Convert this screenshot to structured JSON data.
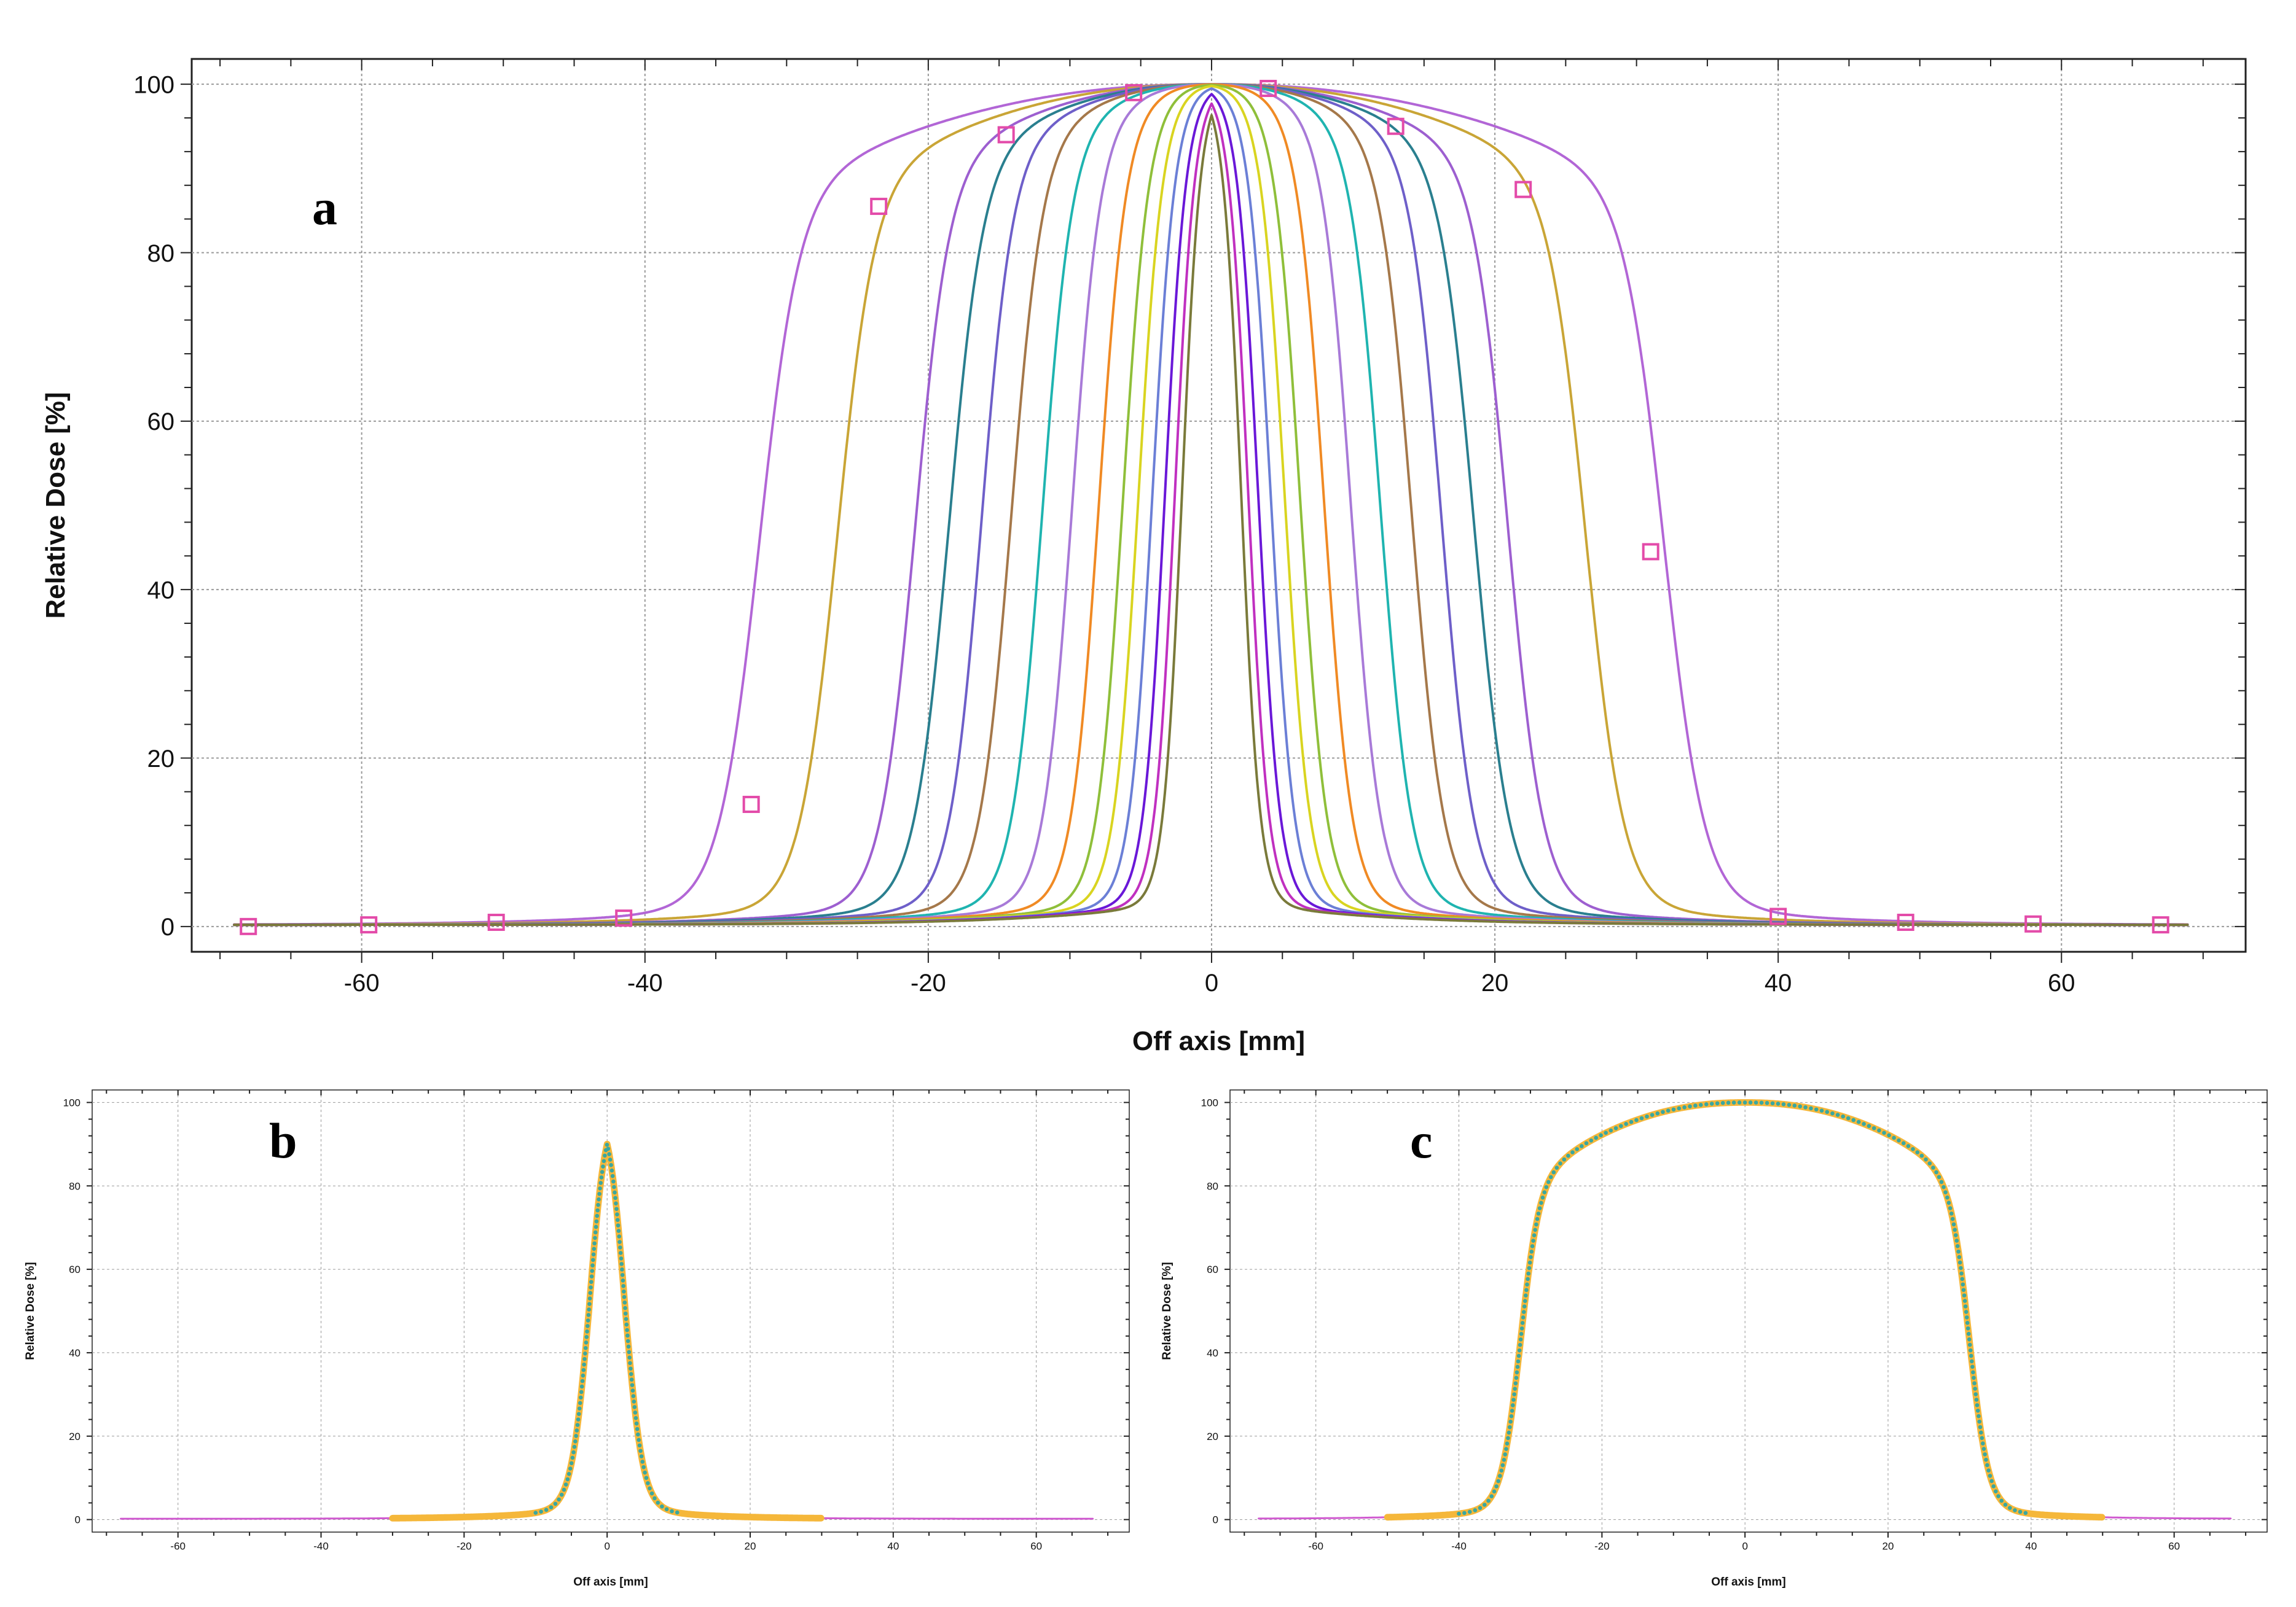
{
  "chart_data": [
    {
      "panel": "a",
      "type": "line",
      "xlabel": "Off axis [mm]",
      "ylabel": "Relative Dose [%]",
      "xlim": [
        -72,
        73
      ],
      "ylim": [
        -3,
        103
      ],
      "xticks": [
        -60,
        -40,
        -20,
        0,
        20,
        40,
        60
      ],
      "yticks": [
        0,
        20,
        40,
        60,
        80,
        100
      ],
      "grid": true,
      "series": [
        {
          "color": "#b266d6",
          "half_width_50": 32.0,
          "penumbra": 1.4,
          "edge_dose": 86,
          "marker": "square"
        },
        {
          "color": "#c9a536",
          "half_width_50": 26.5,
          "penumbra": 1.3,
          "edge_dose": 87
        },
        {
          "color": "#9d5fd0",
          "half_width_50": 21.0,
          "penumbra": 1.2,
          "edge_dose": 89
        },
        {
          "color": "#2a7f8f",
          "half_width_50": 18.6,
          "penumbra": 1.2,
          "edge_dose": 90
        },
        {
          "color": "#6e5fc9",
          "half_width_50": 16.3,
          "penumbra": 1.1,
          "edge_dose": 91
        },
        {
          "color": "#a5784a",
          "half_width_50": 14.2,
          "penumbra": 1.1,
          "edge_dose": 92
        },
        {
          "color": "#1fb4b0",
          "half_width_50": 12.0,
          "penumbra": 1.05,
          "edge_dose": 93
        },
        {
          "color": "#a87ad8",
          "half_width_50": 9.9,
          "penumbra": 1.0,
          "edge_dose": 94
        },
        {
          "color": "#f08a24",
          "half_width_50": 8.0,
          "penumbra": 0.95,
          "edge_dose": 95
        },
        {
          "color": "#8fbf3a",
          "half_width_50": 6.3,
          "penumbra": 0.9,
          "edge_dose": 96
        },
        {
          "color": "#d9d420",
          "half_width_50": 5.2,
          "penumbra": 0.85,
          "edge_dose": 97
        },
        {
          "color": "#6b7fd6",
          "half_width_50": 4.2,
          "penumbra": 0.8,
          "edge_dose": 98
        },
        {
          "color": "#6a18d8",
          "half_width_50": 3.3,
          "penumbra": 0.75,
          "edge_dose": 99
        },
        {
          "color": "#c030c0",
          "half_width_50": 2.6,
          "penumbra": 0.7,
          "edge_dose": 99
        },
        {
          "color": "#7a7a3a",
          "half_width_50": 2.1,
          "penumbra": 0.65,
          "edge_dose": 99
        }
      ],
      "markers": {
        "color": "#e34ba9",
        "points": [
          [
            -68,
            0
          ],
          [
            -59.5,
            0.2
          ],
          [
            -50.5,
            0.5
          ],
          [
            -41.5,
            1
          ],
          [
            -32.5,
            14.5
          ],
          [
            -23.5,
            85.5
          ],
          [
            -14.5,
            94
          ],
          [
            -5.5,
            99
          ],
          [
            4,
            99.5
          ],
          [
            13,
            95
          ],
          [
            22,
            87.5
          ],
          [
            31,
            44.5
          ],
          [
            40,
            1.2
          ],
          [
            49,
            0.5
          ],
          [
            58,
            0.3
          ],
          [
            67,
            0.2
          ]
        ]
      }
    },
    {
      "panel": "b",
      "type": "line",
      "xlabel": "Off axis [mm]",
      "ylabel": "Relative Dose [%]",
      "xlim": [
        -72,
        73
      ],
      "ylim": [
        -3,
        103
      ],
      "xticks": [
        -60,
        -40,
        -20,
        0,
        20,
        40,
        60
      ],
      "yticks": [
        0,
        20,
        40,
        60,
        80,
        100
      ],
      "grid": true,
      "series": [
        {
          "color": "#d05ad0",
          "half_width_50": 2.6,
          "penumbra": 1.2,
          "range": [
            -68,
            68
          ]
        },
        {
          "color": "#f5b73a",
          "half_width_50": 2.6,
          "penumbra": 1.2,
          "range": [
            -30,
            30
          ],
          "style": "thick"
        },
        {
          "color": "#3aa7a0",
          "half_width_50": 2.6,
          "penumbra": 1.2,
          "range": [
            -10,
            10
          ],
          "style": "dots"
        }
      ]
    },
    {
      "panel": "c",
      "type": "line",
      "xlabel": "Off axis [mm]",
      "ylabel": "Relative Dose [%]",
      "xlim": [
        -72,
        73
      ],
      "ylim": [
        -3,
        103
      ],
      "xticks": [
        -60,
        -40,
        -20,
        0,
        20,
        40,
        60
      ],
      "yticks": [
        0,
        20,
        40,
        60,
        80,
        100
      ],
      "grid": true,
      "series": [
        {
          "color": "#d05ad0",
          "half_width_50": 31.5,
          "penumbra": 1.3,
          "edge_dose": 80,
          "range": [
            -68,
            68
          ]
        },
        {
          "color": "#1f9e8a",
          "half_width_50": 31.5,
          "penumbra": 1.3,
          "edge_dose": 78,
          "range": [
            -50,
            50
          ]
        },
        {
          "color": "#f5b73a",
          "half_width_50": 31.5,
          "penumbra": 1.3,
          "edge_dose": 79,
          "range": [
            -50,
            50
          ],
          "style": "thick"
        },
        {
          "color": "#3aa7a0",
          "half_width_50": 31.5,
          "penumbra": 1.3,
          "edge_dose": 79,
          "range": [
            -40,
            40
          ],
          "style": "dots"
        }
      ]
    }
  ],
  "panel_letters": [
    "a",
    "b",
    "c"
  ]
}
